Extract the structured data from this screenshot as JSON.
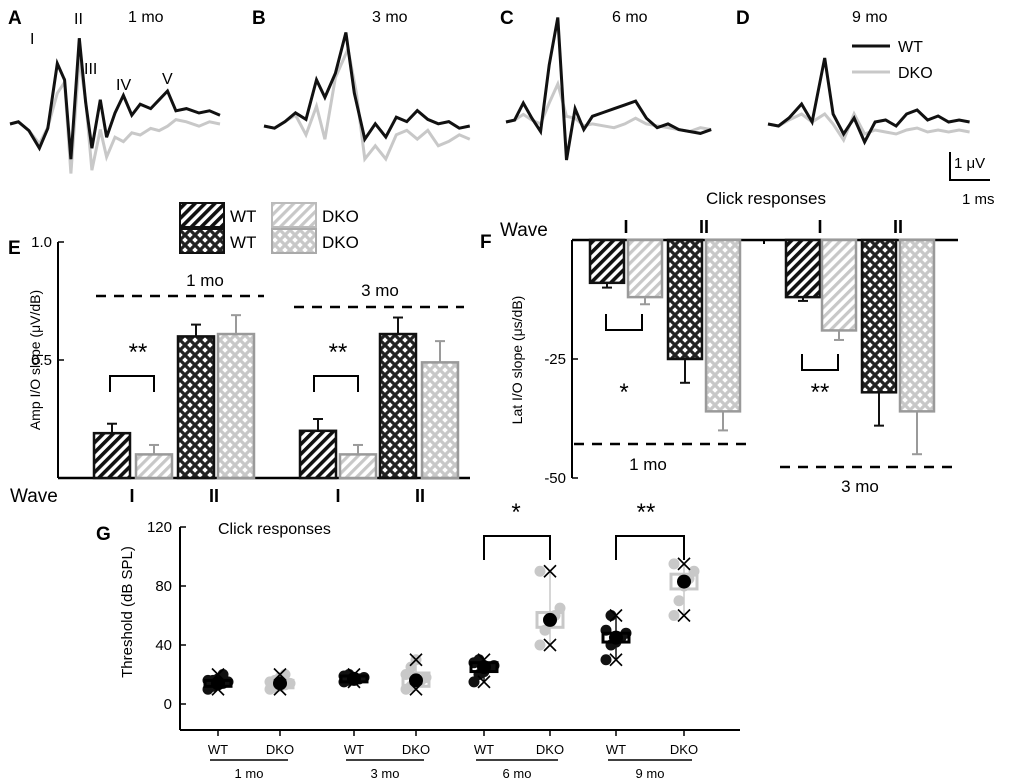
{
  "colors": {
    "wt": "#111111",
    "dko": "#c8c8c8",
    "dko_edge": "#9a9a9a",
    "axis": "#000000",
    "bg": "#ffffff"
  },
  "abr": {
    "panels": [
      {
        "letter": "A",
        "title": "1 mo",
        "peaks": [
          "I",
          "II",
          "III",
          "IV",
          "V"
        ],
        "wt": [
          [
            0,
            0
          ],
          [
            8,
            2
          ],
          [
            18,
            -6
          ],
          [
            28,
            -22
          ],
          [
            36,
            -4
          ],
          [
            45,
            55
          ],
          [
            52,
            40
          ],
          [
            58,
            -32
          ],
          [
            66,
            78
          ],
          [
            72,
            20
          ],
          [
            78,
            -22
          ],
          [
            86,
            22
          ],
          [
            92,
            -12
          ],
          [
            100,
            10
          ],
          [
            108,
            26
          ],
          [
            116,
            8
          ],
          [
            124,
            18
          ],
          [
            134,
            14
          ],
          [
            142,
            22
          ],
          [
            150,
            30
          ],
          [
            158,
            12
          ],
          [
            168,
            14
          ],
          [
            180,
            10
          ],
          [
            190,
            12
          ],
          [
            200,
            8
          ]
        ],
        "dko": [
          [
            0,
            0
          ],
          [
            8,
            2
          ],
          [
            18,
            -6
          ],
          [
            28,
            -18
          ],
          [
            36,
            -3
          ],
          [
            45,
            28
          ],
          [
            52,
            38
          ],
          [
            58,
            -45
          ],
          [
            66,
            60
          ],
          [
            72,
            22
          ],
          [
            78,
            -42
          ],
          [
            86,
            -5
          ],
          [
            92,
            -30
          ],
          [
            100,
            -12
          ],
          [
            108,
            -16
          ],
          [
            116,
            -8
          ],
          [
            124,
            -10
          ],
          [
            134,
            -4
          ],
          [
            142,
            -6
          ],
          [
            150,
            -2
          ],
          [
            158,
            4
          ],
          [
            168,
            2
          ],
          [
            180,
            -2
          ],
          [
            190,
            2
          ],
          [
            200,
            0
          ]
        ]
      },
      {
        "letter": "B",
        "title": "3 mo",
        "wt": [
          [
            0,
            0
          ],
          [
            10,
            -2
          ],
          [
            20,
            4
          ],
          [
            30,
            12
          ],
          [
            40,
            6
          ],
          [
            50,
            42
          ],
          [
            58,
            26
          ],
          [
            68,
            48
          ],
          [
            78,
            85
          ],
          [
            86,
            30
          ],
          [
            96,
            -12
          ],
          [
            106,
            2
          ],
          [
            116,
            -10
          ],
          [
            126,
            8
          ],
          [
            136,
            4
          ],
          [
            146,
            14
          ],
          [
            156,
            6
          ],
          [
            166,
            2
          ],
          [
            176,
            4
          ],
          [
            186,
            -2
          ],
          [
            196,
            0
          ]
        ],
        "dko": [
          [
            0,
            0
          ],
          [
            10,
            -2
          ],
          [
            20,
            4
          ],
          [
            30,
            10
          ],
          [
            40,
            -8
          ],
          [
            50,
            18
          ],
          [
            58,
            -12
          ],
          [
            68,
            44
          ],
          [
            80,
            70
          ],
          [
            88,
            30
          ],
          [
            96,
            -30
          ],
          [
            106,
            -18
          ],
          [
            116,
            -30
          ],
          [
            126,
            -8
          ],
          [
            136,
            -4
          ],
          [
            146,
            -12
          ],
          [
            156,
            -4
          ],
          [
            166,
            -18
          ],
          [
            176,
            -14
          ],
          [
            186,
            -8
          ],
          [
            196,
            -12
          ]
        ]
      },
      {
        "letter": "C",
        "title": "6 mo",
        "wt": [
          [
            0,
            0
          ],
          [
            8,
            2
          ],
          [
            16,
            20
          ],
          [
            24,
            4
          ],
          [
            32,
            -10
          ],
          [
            40,
            60
          ],
          [
            48,
            110
          ],
          [
            56,
            -40
          ],
          [
            64,
            14
          ],
          [
            72,
            -8
          ],
          [
            80,
            6
          ],
          [
            90,
            10
          ],
          [
            100,
            14
          ],
          [
            110,
            18
          ],
          [
            120,
            22
          ],
          [
            130,
            4
          ],
          [
            140,
            -6
          ],
          [
            150,
            -2
          ],
          [
            160,
            -8
          ],
          [
            170,
            -10
          ],
          [
            180,
            -12
          ],
          [
            190,
            -8
          ]
        ],
        "dko": [
          [
            0,
            0
          ],
          [
            8,
            2
          ],
          [
            16,
            8
          ],
          [
            24,
            2
          ],
          [
            32,
            -2
          ],
          [
            40,
            20
          ],
          [
            48,
            40
          ],
          [
            56,
            6
          ],
          [
            64,
            4
          ],
          [
            72,
            -4
          ],
          [
            80,
            -2
          ],
          [
            90,
            -4
          ],
          [
            100,
            -6
          ],
          [
            110,
            -2
          ],
          [
            120,
            4
          ],
          [
            130,
            -2
          ],
          [
            140,
            -4
          ],
          [
            150,
            -6
          ],
          [
            160,
            -8
          ],
          [
            170,
            -10
          ],
          [
            180,
            -6
          ],
          [
            190,
            -8
          ]
        ]
      },
      {
        "letter": "D",
        "title": "9 mo",
        "wt": [
          [
            0,
            0
          ],
          [
            10,
            -2
          ],
          [
            20,
            6
          ],
          [
            32,
            20
          ],
          [
            42,
            2
          ],
          [
            54,
            66
          ],
          [
            62,
            10
          ],
          [
            72,
            -10
          ],
          [
            82,
            6
          ],
          [
            92,
            -18
          ],
          [
            102,
            2
          ],
          [
            112,
            4
          ],
          [
            122,
            -2
          ],
          [
            132,
            10
          ],
          [
            142,
            14
          ],
          [
            152,
            4
          ],
          [
            162,
            8
          ],
          [
            172,
            2
          ],
          [
            182,
            4
          ],
          [
            192,
            2
          ]
        ],
        "dko": [
          [
            0,
            0
          ],
          [
            10,
            -2
          ],
          [
            20,
            4
          ],
          [
            32,
            10
          ],
          [
            42,
            2
          ],
          [
            54,
            10
          ],
          [
            62,
            0
          ],
          [
            72,
            -16
          ],
          [
            82,
            10
          ],
          [
            92,
            -10
          ],
          [
            102,
            -6
          ],
          [
            112,
            -8
          ],
          [
            122,
            -10
          ],
          [
            132,
            -6
          ],
          [
            142,
            -4
          ],
          [
            152,
            -8
          ],
          [
            162,
            -6
          ],
          [
            172,
            -8
          ],
          [
            182,
            -6
          ],
          [
            192,
            -8
          ]
        ]
      }
    ],
    "legend": {
      "wt": "WT",
      "dko": "DKO"
    },
    "scale_bar": {
      "y_label": "1 μV",
      "x_label": "1 ms"
    }
  },
  "bar_legend": {
    "wt_hatch": "WT",
    "dko_hatch": "DKO",
    "wt_cross": "WT",
    "dko_cross": "DKO"
  },
  "chart_data": [
    {
      "panel": "E",
      "type": "bar",
      "title": "",
      "xlabel": "Wave",
      "ylabel": "Amp I/O slope (μV/dB)",
      "ylim": [
        0,
        1.0
      ],
      "yticks": [
        1.0,
        0.5
      ],
      "groups": [
        {
          "label": "1 mo",
          "bars": [
            {
              "wave": "I",
              "genotype": "WT",
              "value": 0.19,
              "err": 0.04
            },
            {
              "wave": "I",
              "genotype": "DKO",
              "value": 0.1,
              "err": 0.04
            },
            {
              "wave": "II",
              "genotype": "WT",
              "value": 0.6,
              "err": 0.05
            },
            {
              "wave": "II",
              "genotype": "DKO",
              "value": 0.61,
              "err": 0.08
            }
          ],
          "significance": "**"
        },
        {
          "label": "3 mo",
          "bars": [
            {
              "wave": "I",
              "genotype": "WT",
              "value": 0.2,
              "err": 0.05
            },
            {
              "wave": "I",
              "genotype": "DKO",
              "value": 0.1,
              "err": 0.04
            },
            {
              "wave": "II",
              "genotype": "WT",
              "value": 0.61,
              "err": 0.07
            },
            {
              "wave": "II",
              "genotype": "DKO",
              "value": 0.49,
              "err": 0.09
            }
          ],
          "significance": "**"
        }
      ],
      "wave_labels": [
        "I",
        "II",
        "I",
        "II"
      ]
    },
    {
      "panel": "F",
      "type": "bar",
      "title": "Click responses",
      "xlabel": "Wave",
      "ylabel": "Lat I/O slope (μs/dB)",
      "ylim": [
        -50,
        0
      ],
      "yticks": [
        -25,
        -50
      ],
      "groups": [
        {
          "label": "1 mo",
          "bars": [
            {
              "wave": "I",
              "genotype": "WT",
              "value": -9,
              "err": 1
            },
            {
              "wave": "I",
              "genotype": "DKO",
              "value": -12,
              "err": 1.5
            },
            {
              "wave": "II",
              "genotype": "WT",
              "value": -25,
              "err": 5
            },
            {
              "wave": "II",
              "genotype": "DKO",
              "value": -36,
              "err": 4
            }
          ],
          "significance": "*"
        },
        {
          "label": "3 mo",
          "bars": [
            {
              "wave": "I",
              "genotype": "WT",
              "value": -12,
              "err": 0.8
            },
            {
              "wave": "I",
              "genotype": "DKO",
              "value": -19,
              "err": 2
            },
            {
              "wave": "II",
              "genotype": "WT",
              "value": -32,
              "err": 7
            },
            {
              "wave": "II",
              "genotype": "DKO",
              "value": -36,
              "err": 9
            }
          ],
          "significance": "**"
        }
      ],
      "wave_labels": [
        "I",
        "II",
        "I",
        "II"
      ]
    },
    {
      "panel": "G",
      "type": "scatter",
      "title": "Click responses",
      "ylabel": "Threshold (dB SPL)",
      "ylim": [
        0,
        120
      ],
      "yticks": [
        0,
        40,
        80,
        120
      ],
      "categories": [
        "WT",
        "DKO",
        "WT",
        "DKO",
        "WT",
        "DKO",
        "WT",
        "DKO"
      ],
      "age_groups": [
        "1 mo",
        "3 mo",
        "6 mo",
        "9 mo"
      ],
      "significance": [
        {
          "ages": "6 mo",
          "mark": "*"
        },
        {
          "ages": "9 mo",
          "mark": "**"
        }
      ],
      "boxes": [
        {
          "genotype": "WT",
          "mean": 14,
          "q1": 12,
          "q3": 16,
          "min": 10,
          "max": 20,
          "points": [
            10,
            12,
            13,
            14,
            15,
            16,
            16,
            17,
            20
          ]
        },
        {
          "genotype": "DKO",
          "mean": 14,
          "q1": 11,
          "q3": 16,
          "min": 10,
          "max": 20,
          "points": [
            10,
            11,
            12,
            13,
            14,
            15,
            16,
            18,
            20
          ]
        },
        {
          "genotype": "WT",
          "mean": 17,
          "q1": 15,
          "q3": 19,
          "min": 15,
          "max": 20,
          "points": [
            15,
            16,
            17,
            17,
            18,
            19,
            20
          ]
        },
        {
          "genotype": "DKO",
          "mean": 16,
          "q1": 12,
          "q3": 21,
          "min": 10,
          "max": 30,
          "points": [
            10,
            12,
            14,
            16,
            18,
            20,
            25,
            30
          ]
        },
        {
          "genotype": "WT",
          "mean": 25,
          "q1": 22,
          "q3": 28,
          "min": 15,
          "max": 30,
          "points": [
            15,
            20,
            22,
            25,
            26,
            28,
            30
          ]
        },
        {
          "genotype": "DKO",
          "mean": 57,
          "q1": 52,
          "q3": 62,
          "min": 40,
          "max": 90,
          "points": [
            40,
            50,
            55,
            60,
            65,
            90
          ]
        },
        {
          "genotype": "WT",
          "mean": 45,
          "q1": 42,
          "q3": 48,
          "min": 30,
          "max": 60,
          "points": [
            30,
            40,
            42,
            45,
            48,
            50,
            60
          ]
        },
        {
          "genotype": "DKO",
          "mean": 83,
          "q1": 78,
          "q3": 88,
          "min": 60,
          "max": 95,
          "points": [
            60,
            70,
            80,
            85,
            90,
            95
          ]
        }
      ]
    }
  ]
}
